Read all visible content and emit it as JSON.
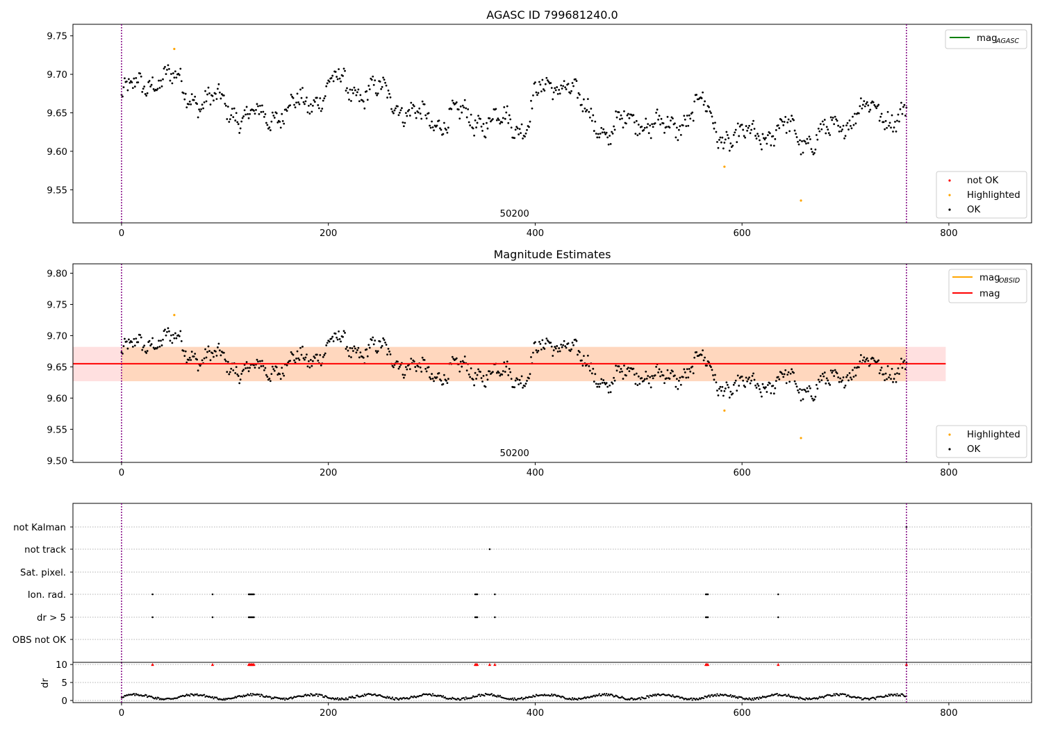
{
  "chart_data": [
    {
      "type": "scatter",
      "title": "AGASC ID 799681240.0",
      "xlabel": "",
      "ylabel": "",
      "xlim": [
        -47,
        880
      ],
      "ylim": [
        9.507,
        9.765
      ],
      "xticks": [
        0,
        200,
        400,
        600,
        800
      ],
      "yticks": [
        9.55,
        9.6,
        9.65,
        9.7,
        9.75
      ],
      "xtick_labels": [
        "0",
        "200",
        "400",
        "600",
        "800"
      ],
      "ytick_labels": [
        "9.55",
        "9.60",
        "9.65",
        "9.70",
        "9.75"
      ],
      "vlines": [
        0,
        759
      ],
      "annotation": "50200",
      "annotation_x": 380,
      "series": [
        {
          "name": "not OK",
          "color": "#ff0000",
          "x": [],
          "y": []
        },
        {
          "name": "Highlighted",
          "color": "#ffa500",
          "x": [
            51,
            583,
            657
          ],
          "y": [
            9.733,
            9.58,
            9.536
          ]
        },
        {
          "name": "OK",
          "color": "#000000",
          "generator": "magnitude_series"
        }
      ],
      "legend_lines": [
        {
          "label": "mag",
          "sub": "AGASC",
          "color": "#008000"
        }
      ],
      "legend_points": [
        "not OK",
        "Highlighted",
        "OK"
      ]
    },
    {
      "type": "scatter",
      "title": "Magnitude Estimates",
      "xlabel": "",
      "ylabel": "",
      "xlim": [
        -47,
        880
      ],
      "ylim": [
        9.497,
        9.815
      ],
      "xticks": [
        0,
        200,
        400,
        600,
        800
      ],
      "yticks": [
        9.5,
        9.55,
        9.6,
        9.65,
        9.7,
        9.75,
        9.8
      ],
      "xtick_labels": [
        "0",
        "200",
        "400",
        "600",
        "800"
      ],
      "ytick_labels": [
        "9.50",
        "9.55",
        "9.60",
        "9.65",
        "9.70",
        "9.75",
        "9.80"
      ],
      "vlines": [
        0,
        759
      ],
      "annotation": "50200",
      "annotation_x": 380,
      "mag": 9.655,
      "band": [
        9.627,
        9.682
      ],
      "band_x": [
        -47,
        797
      ],
      "inner_band_x": [
        0,
        759
      ],
      "series": [
        {
          "name": "Highlighted",
          "color": "#ffa500",
          "x": [
            51,
            583,
            657
          ],
          "y": [
            9.733,
            9.58,
            9.536
          ]
        },
        {
          "name": "OK",
          "color": "#000000",
          "generator": "magnitude_series"
        }
      ],
      "legend_lines": [
        {
          "label": "mag",
          "sub": "OBSID",
          "color": "#ffa500"
        },
        {
          "label": "mag",
          "sub": "",
          "color": "#ff0000"
        }
      ],
      "legend_points": [
        "Highlighted",
        "OK"
      ]
    },
    {
      "type": "scatter",
      "title": "",
      "xlim": [
        -47,
        880
      ],
      "categories": [
        "OBS not OK",
        "dr > 5",
        "Ion. rad.",
        "Sat. pixel.",
        "not track",
        "not Kalman"
      ],
      "flags": {
        "not Kalman": [
          759
        ],
        "not track": [
          356
        ],
        "Sat. pixel.": [],
        "Ion. rad.": [
          30,
          88,
          123,
          124,
          125,
          126,
          127,
          128,
          342,
          343,
          344,
          361,
          565,
          566,
          567,
          635
        ],
        "dr > 5": [
          30,
          88,
          123,
          124,
          125,
          126,
          127,
          128,
          342,
          343,
          344,
          361,
          565,
          566,
          567,
          635
        ],
        "OBS not OK": []
      },
      "vlines": [
        0,
        759
      ]
    },
    {
      "type": "scatter",
      "title": "",
      "ylabel": "dr",
      "xlim": [
        -47,
        880
      ],
      "ylim": [
        -0.6,
        10.6
      ],
      "yticks": [
        0,
        5,
        10
      ],
      "ytick_labels": [
        "0",
        "5",
        "10"
      ],
      "xticks": [
        0,
        200,
        400,
        600,
        800
      ],
      "xtick_labels": [
        "0",
        "200",
        "400",
        "600",
        "800"
      ],
      "dr_clip_markers_x": [
        30,
        88,
        123,
        124,
        125,
        126,
        127,
        128,
        342,
        343,
        344,
        356,
        361,
        565,
        566,
        567,
        635,
        759
      ],
      "dr_clip_value": 10,
      "vlines": [
        0,
        759
      ]
    }
  ]
}
